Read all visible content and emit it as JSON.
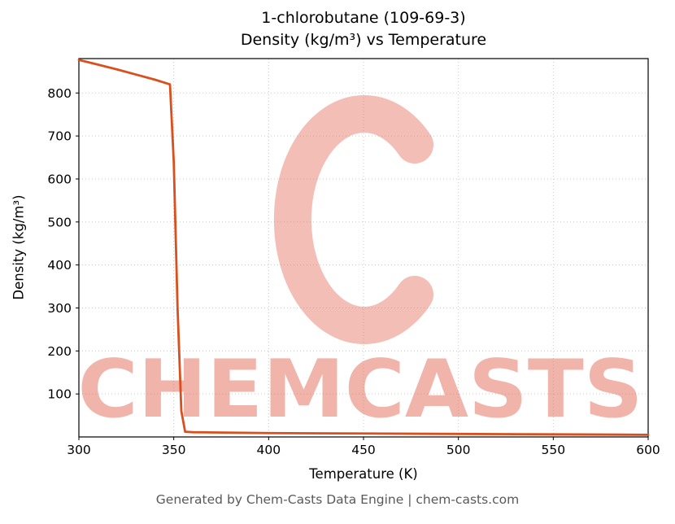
{
  "title": {
    "line1": "1-chlorobutane (109-69-3)",
    "line2": "Density (kg/m³) vs Temperature"
  },
  "footer": "Generated by Chem-Casts Data Engine | chem-casts.com",
  "watermark": {
    "text": "CHEMCASTS",
    "color": "#e06450",
    "arc_opacity": 0.42,
    "text_opacity": 0.48
  },
  "chart_data": {
    "type": "line",
    "title": "1-chlorobutane (109-69-3) — Density (kg/m³) vs Temperature",
    "xlabel": "Temperature (K)",
    "ylabel": "Density (kg/m³)",
    "xlim": [
      300,
      600
    ],
    "ylim": [
      0,
      880
    ],
    "xticks": [
      300,
      350,
      400,
      450,
      500,
      550,
      600
    ],
    "yticks": [
      100,
      200,
      300,
      400,
      500,
      600,
      700,
      800
    ],
    "grid": true,
    "grid_color": "#c9c9c9",
    "line_color": "#d9501e",
    "series": [
      {
        "name": "Density",
        "x": [
          300,
          310,
          320,
          330,
          340,
          348,
          350,
          352,
          354,
          356,
          360,
          400,
          450,
          500,
          550,
          600
        ],
        "y": [
          877,
          866,
          855,
          843,
          831,
          820,
          640,
          300,
          60,
          12,
          11,
          9,
          8,
          7,
          6,
          5
        ]
      }
    ]
  }
}
